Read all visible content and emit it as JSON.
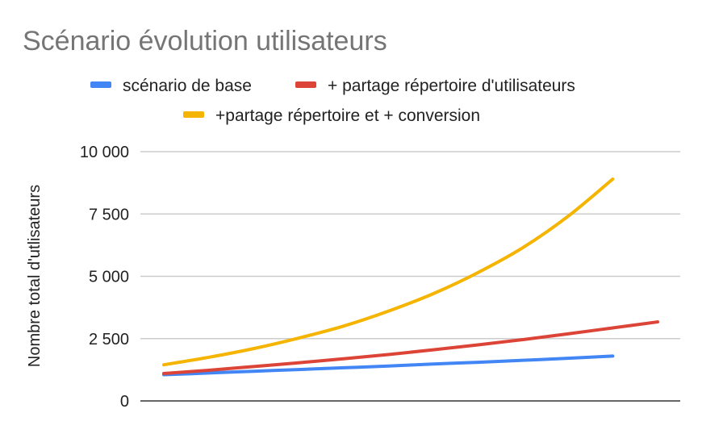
{
  "chart_data": {
    "type": "line",
    "title": "Scénario évolution utilisateurs",
    "xlabel": "",
    "ylabel": "Nombre total d'utlisateurs",
    "ylim": [
      0,
      10000
    ],
    "yticks": [
      {
        "value": 0,
        "label": "0"
      },
      {
        "value": 2500,
        "label": "2 500"
      },
      {
        "value": 5000,
        "label": "5 000"
      },
      {
        "value": 7500,
        "label": "7 500"
      },
      {
        "value": 10000,
        "label": "10 000"
      }
    ],
    "grid": true,
    "legend_position": "top",
    "x": [
      1,
      2,
      3,
      4,
      5,
      6,
      7,
      8,
      9,
      10,
      11,
      12
    ],
    "series": [
      {
        "name": "scénario de base",
        "color": "#4285f4",
        "values": [
          1050,
          1120,
          1190,
          1260,
          1330,
          1400,
          1480,
          1550,
          1630,
          1710,
          1800,
          null
        ]
      },
      {
        "name": "+ partage répertoire d'utilisateurs",
        "color": "#db4437",
        "values": [
          1100,
          1230,
          1380,
          1530,
          1690,
          1860,
          2050,
          2250,
          2460,
          2690,
          2930,
          3170
        ]
      },
      {
        "name": "+partage répertoire et + conversion",
        "color": "#f4b400",
        "values": [
          1450,
          1750,
          2100,
          2520,
          3000,
          3600,
          4300,
          5150,
          6150,
          7400,
          8900,
          null
        ]
      }
    ]
  }
}
